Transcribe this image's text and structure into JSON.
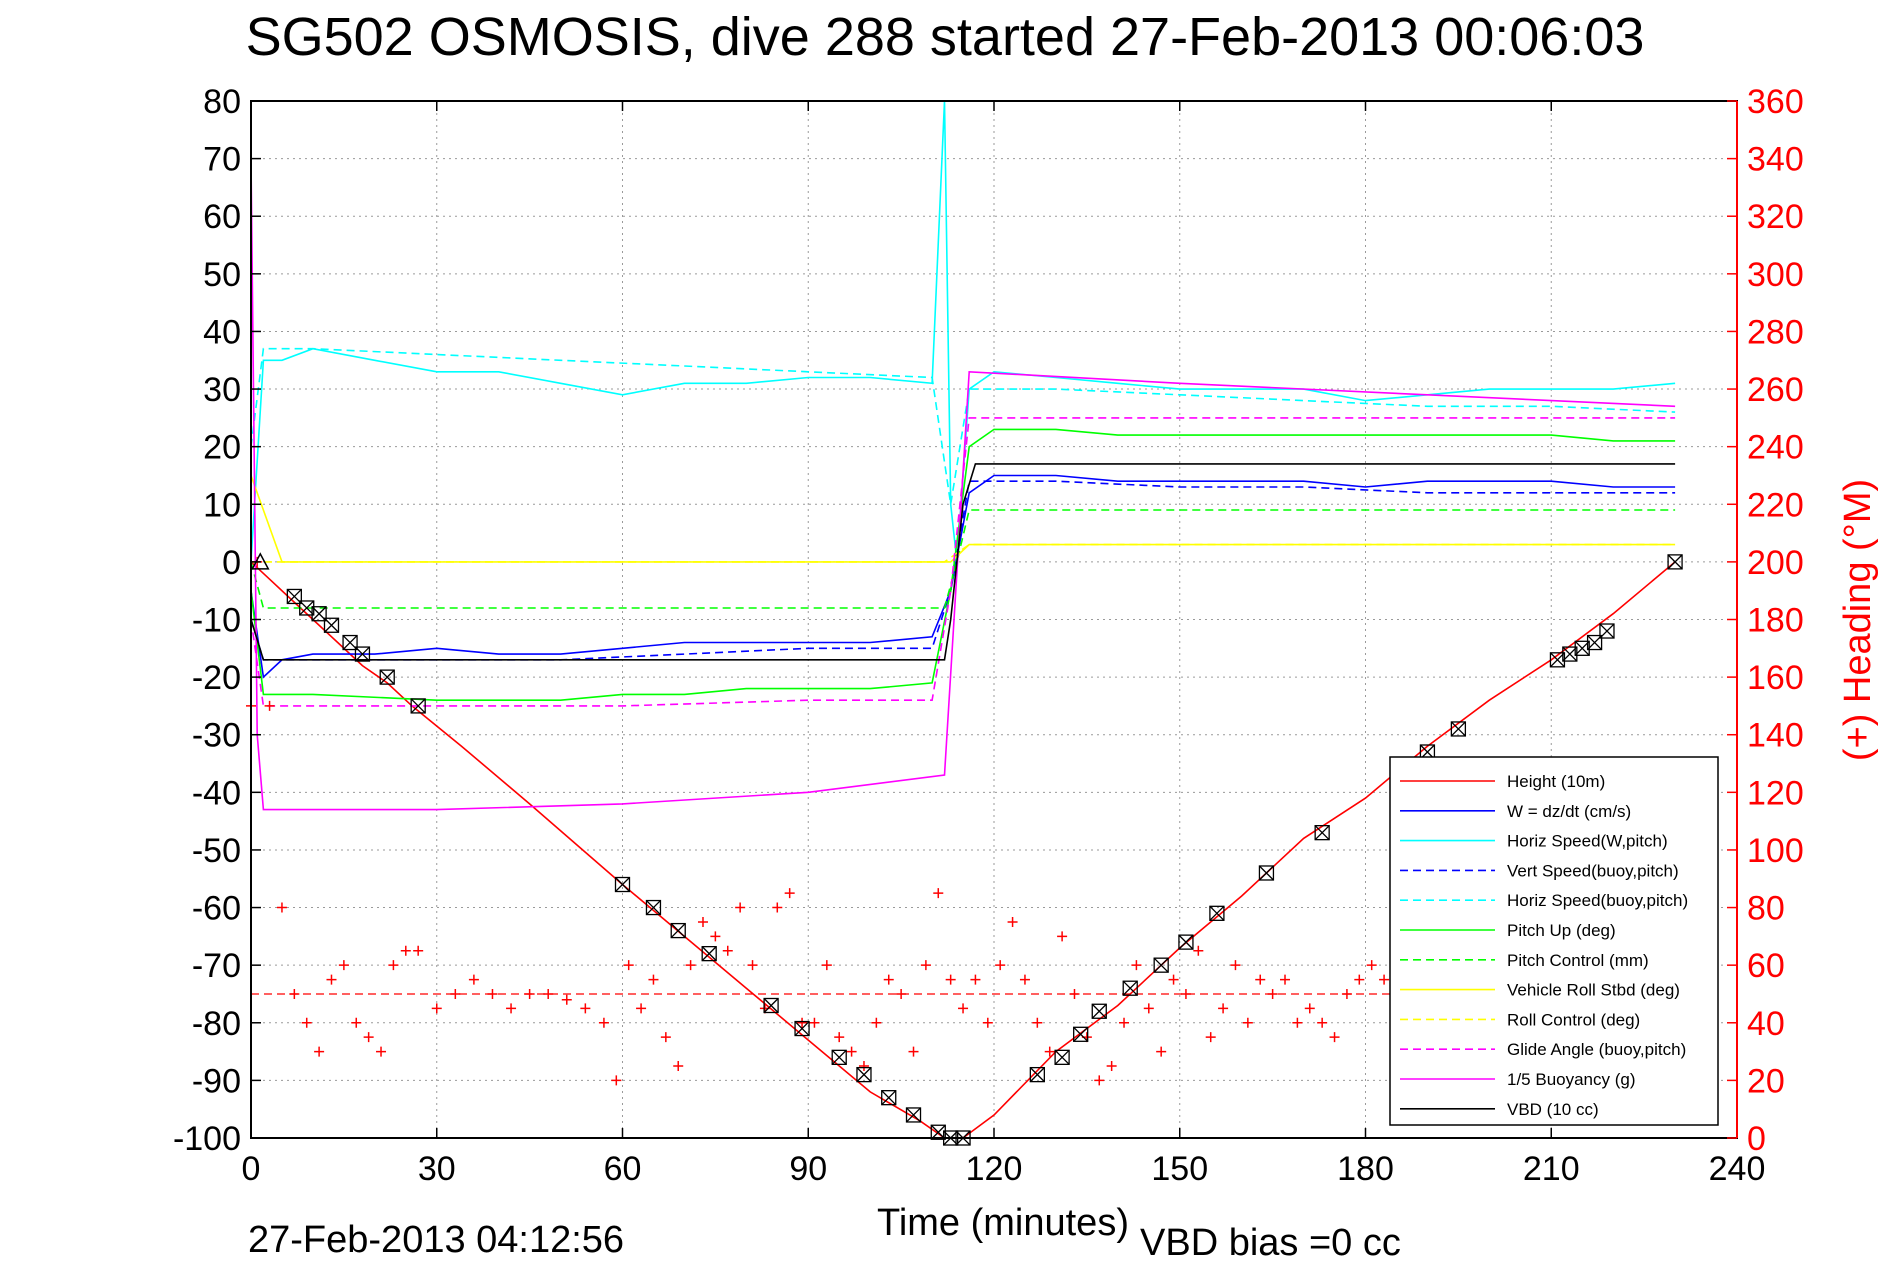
{
  "chart_data": {
    "type": "line",
    "title": "SG502 OSMOSIS, dive 288 started 27-Feb-2013 00:06:03",
    "xlabel": "Time (minutes)",
    "ylabel": "",
    "y2label": "(+) Heading (°M)",
    "xlim": [
      0,
      240
    ],
    "ylim": [
      -100,
      80
    ],
    "y2lim": [
      0,
      360
    ],
    "xticks": [
      "0",
      "30",
      "60",
      "90",
      "120",
      "150",
      "180",
      "210",
      "240"
    ],
    "yticks": [
      "80",
      "70",
      "60",
      "50",
      "40",
      "30",
      "20",
      "10",
      "0",
      "-10",
      "-20",
      "-30",
      "-40",
      "-50",
      "-60",
      "-70",
      "-80",
      "-90",
      "-100"
    ],
    "y2ticks": [
      "360",
      "340",
      "320",
      "300",
      "280",
      "260",
      "240",
      "220",
      "200",
      "180",
      "160",
      "140",
      "120",
      "100",
      "80",
      "60",
      "40",
      "20",
      "0"
    ],
    "grid": true,
    "legend_position": "bottom-right",
    "footer_left": "27-Feb-2013 04:12:56",
    "footer_right": "VBD bias =0 cc",
    "colors": {
      "height": "#ff0000",
      "w": "#0000ff",
      "horiz_speed": "#00ffff",
      "pitch": "#00ff00",
      "roll": "#ffff00",
      "glide": "#ff00ff",
      "buoyancy": "#ff00ff",
      "vbd": "#000000"
    },
    "series": [
      {
        "name": "Height (10m)",
        "color": "#ff0000",
        "style": "solid",
        "x": [
          0,
          3,
          6,
          10,
          14,
          18,
          22,
          26,
          34,
          45,
          60,
          70,
          80,
          90,
          100,
          108,
          112,
          115,
          120,
          130,
          140,
          150,
          160,
          170,
          180,
          190,
          200,
          210,
          220,
          230
        ],
        "y": [
          0,
          -3,
          -6,
          -10,
          -14,
          -18,
          -21,
          -25,
          -32,
          -42,
          -56,
          -65,
          -74,
          -83,
          -92,
          -97,
          -100,
          -100,
          -96,
          -85,
          -77,
          -67,
          -58,
          -48,
          -41,
          -32,
          -24,
          -17,
          -9,
          0
        ]
      },
      {
        "name": "W = dz/dt (cm/s)",
        "color": "#0000ff",
        "style": "solid",
        "x": [
          0,
          2,
          5,
          10,
          20,
          30,
          40,
          50,
          60,
          70,
          80,
          90,
          100,
          110,
          113,
          116,
          120,
          130,
          140,
          150,
          160,
          170,
          180,
          190,
          200,
          210,
          220,
          230
        ],
        "y": [
          -5,
          -20,
          -17,
          -16,
          -16,
          -15,
          -16,
          -16,
          -15,
          -14,
          -14,
          -14,
          -14,
          -13,
          -5,
          12,
          15,
          15,
          14,
          14,
          14,
          14,
          13,
          14,
          14,
          14,
          13,
          13
        ]
      },
      {
        "name": "Horiz Speed(W,pitch)",
        "color": "#00ffff",
        "style": "solid",
        "x": [
          0,
          2,
          5,
          10,
          20,
          30,
          40,
          50,
          60,
          70,
          80,
          90,
          100,
          110,
          112,
          113,
          114,
          116,
          120,
          130,
          140,
          150,
          160,
          170,
          180,
          190,
          200,
          210,
          220,
          230
        ],
        "y": [
          0,
          35,
          35,
          37,
          35,
          33,
          33,
          31,
          29,
          31,
          31,
          32,
          32,
          31,
          80,
          10,
          0,
          30,
          33,
          32,
          31,
          30,
          30,
          30,
          28,
          29,
          30,
          30,
          30,
          31
        ]
      },
      {
        "name": "Vert Speed(buoy,pitch)",
        "color": "#0000ff",
        "style": "dashed",
        "x": [
          0,
          2,
          10,
          30,
          50,
          70,
          90,
          110,
          113,
          116,
          130,
          150,
          170,
          190,
          210,
          230
        ],
        "y": [
          -10,
          -17,
          -17,
          -17,
          -17,
          -16,
          -15,
          -15,
          -5,
          14,
          14,
          13,
          13,
          12,
          12,
          12
        ]
      },
      {
        "name": "Horiz Speed(buoy,pitch)",
        "color": "#00ffff",
        "style": "dashed",
        "x": [
          0,
          2,
          10,
          30,
          50,
          70,
          90,
          110,
          113,
          116,
          130,
          150,
          170,
          190,
          210,
          230
        ],
        "y": [
          20,
          37,
          37,
          36,
          35,
          34,
          33,
          32,
          10,
          30,
          30,
          29,
          28,
          27,
          27,
          26
        ]
      },
      {
        "name": "Pitch Up (deg)",
        "color": "#00ff00",
        "style": "solid",
        "x": [
          0,
          2,
          10,
          30,
          50,
          60,
          70,
          80,
          90,
          100,
          110,
          113,
          116,
          120,
          130,
          140,
          150,
          160,
          170,
          180,
          190,
          200,
          210,
          220,
          230
        ],
        "y": [
          -5,
          -23,
          -23,
          -24,
          -24,
          -23,
          -23,
          -22,
          -22,
          -22,
          -21,
          -5,
          20,
          23,
          23,
          22,
          22,
          22,
          22,
          22,
          22,
          22,
          22,
          21,
          21
        ]
      },
      {
        "name": "Pitch Control (mm)",
        "color": "#00ff00",
        "style": "dashed",
        "x": [
          0,
          2,
          30,
          60,
          90,
          112,
          114,
          116,
          150,
          190,
          230
        ],
        "y": [
          0,
          -8,
          -8,
          -8,
          -8,
          -8,
          0,
          9,
          9,
          9,
          9
        ]
      },
      {
        "name": "Vehicle Roll Stbd (deg)",
        "color": "#ffff00",
        "style": "solid",
        "x": [
          0,
          5,
          10,
          20,
          30,
          40,
          50,
          60,
          70,
          80,
          90,
          100,
          110,
          113,
          116,
          130,
          150,
          170,
          190,
          210,
          230
        ],
        "y": [
          15,
          0,
          0,
          0,
          0,
          0,
          0,
          0,
          0,
          0,
          0,
          0,
          0,
          0,
          3,
          3,
          3,
          3,
          3,
          3,
          3
        ]
      },
      {
        "name": "Roll Control (deg)",
        "color": "#ffff00",
        "style": "dashed",
        "x": [
          0,
          10,
          30,
          60,
          90,
          112,
          116,
          150,
          190,
          230
        ],
        "y": [
          0,
          0,
          0,
          0,
          0,
          0,
          3,
          3,
          3,
          3
        ]
      },
      {
        "name": "Glide Angle (buoy,pitch)",
        "color": "#ff00ff",
        "style": "dashed",
        "x": [
          0,
          2,
          10,
          30,
          60,
          90,
          110,
          113,
          116,
          130,
          150,
          170,
          190,
          210,
          230
        ],
        "y": [
          -10,
          -25,
          -25,
          -25,
          -25,
          -24,
          -24,
          -5,
          25,
          25,
          25,
          25,
          25,
          25,
          25
        ]
      },
      {
        "name": "1/5 Buoyancy (g)",
        "color": "#ff00ff",
        "style": "solid",
        "x": [
          0,
          1,
          2,
          30,
          60,
          90,
          112,
          116,
          150,
          190,
          230
        ],
        "y": [
          70,
          -30,
          -43,
          -43,
          -42,
          -40,
          -37,
          33,
          31,
          29,
          27
        ]
      },
      {
        "name": "VBD (10 cc)",
        "color": "#000000",
        "style": "solid",
        "x": [
          0,
          2,
          112,
          113,
          115,
          117,
          230
        ],
        "y": [
          -10,
          -17,
          -17,
          -10,
          10,
          17,
          17
        ]
      }
    ],
    "heading_series": {
      "name": "(+) Heading (°M)",
      "color": "#ff0000",
      "marker": "+",
      "mean_line": 50,
      "x": [
        0,
        1,
        3,
        5,
        7,
        9,
        11,
        13,
        15,
        17,
        19,
        21,
        23,
        25,
        27,
        30,
        33,
        36,
        39,
        42,
        45,
        48,
        51,
        54,
        57,
        59,
        61,
        63,
        65,
        67,
        69,
        71,
        73,
        75,
        77,
        79,
        81,
        83,
        85,
        87,
        89,
        91,
        93,
        95,
        97,
        99,
        101,
        103,
        105,
        107,
        109,
        111,
        113,
        115,
        117,
        119,
        121,
        123,
        125,
        127,
        129,
        131,
        133,
        135,
        137,
        139,
        141,
        143,
        145,
        147,
        149,
        151,
        153,
        155,
        157,
        159,
        161,
        163,
        165,
        167,
        169,
        171,
        173,
        175,
        177,
        179,
        181,
        183,
        185,
        187
      ],
      "y": [
        150,
        200,
        150,
        80,
        50,
        40,
        30,
        55,
        60,
        40,
        35,
        30,
        60,
        65,
        65,
        45,
        50,
        55,
        50,
        45,
        50,
        50,
        48,
        45,
        40,
        20,
        60,
        45,
        55,
        35,
        25,
        60,
        75,
        70,
        65,
        80,
        60,
        45,
        80,
        85,
        40,
        40,
        60,
        35,
        30,
        25,
        40,
        55,
        50,
        30,
        60,
        85,
        55,
        45,
        55,
        40,
        60,
        75,
        55,
        40,
        30,
        70,
        50,
        35,
        20,
        25,
        40,
        60,
        45,
        30,
        55,
        50,
        65,
        35,
        45,
        60,
        40,
        55,
        50,
        55,
        40,
        45,
        40,
        35,
        50,
        55,
        60,
        55,
        50,
        50
      ]
    },
    "markers": {
      "type": "x-in-box",
      "x": [
        7,
        9,
        11,
        13,
        16,
        18,
        22,
        27,
        60,
        65,
        69,
        74,
        84,
        89,
        95,
        99,
        103,
        107,
        111,
        113,
        115,
        127,
        131,
        134,
        137,
        142,
        147,
        151,
        156,
        164,
        173,
        190,
        195,
        211,
        213,
        215,
        217,
        219,
        230
      ],
      "y": [
        -6,
        -8,
        -9,
        -11,
        -14,
        -16,
        -20,
        -25,
        -56,
        -60,
        -64,
        -68,
        -77,
        -81,
        -86,
        -89,
        -93,
        -96,
        -99,
        -100,
        -100,
        -89,
        -86,
        -82,
        -78,
        -74,
        -70,
        -66,
        -61,
        -54,
        -47,
        -33,
        -29,
        -17,
        -16,
        -15,
        -14,
        -12,
        0
      ]
    }
  }
}
